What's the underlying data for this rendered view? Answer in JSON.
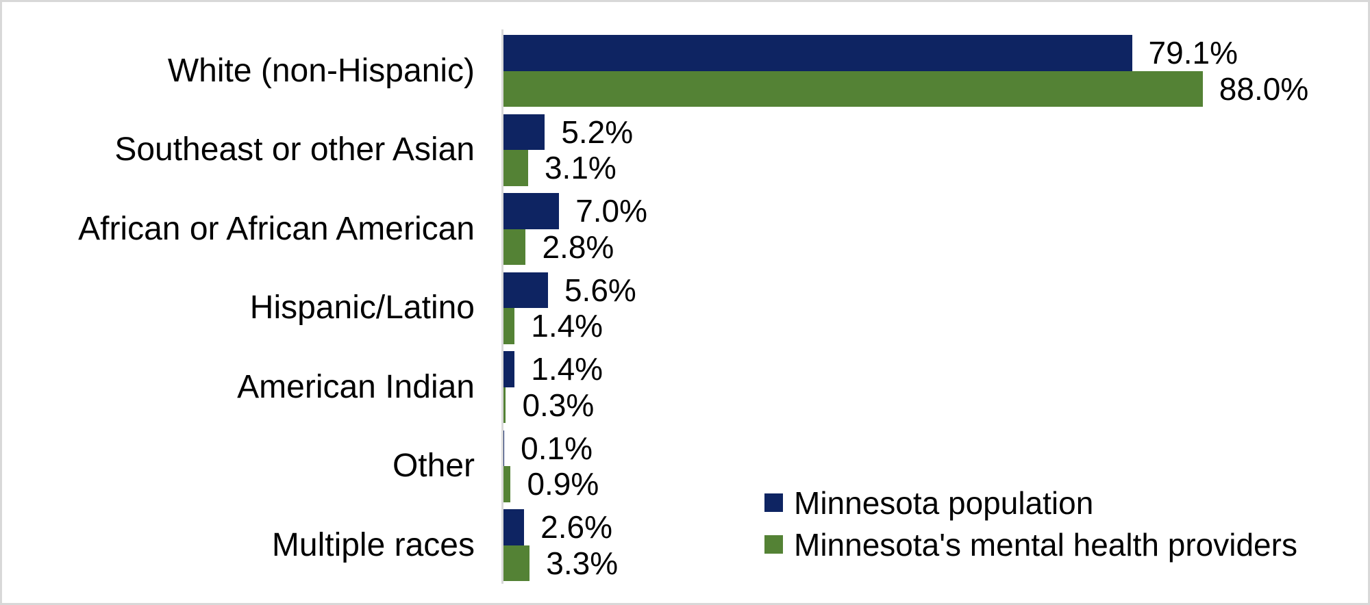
{
  "chart_data": {
    "type": "bar",
    "orientation": "horizontal",
    "title": "",
    "xlabel": "",
    "ylabel": "",
    "xlim": [
      0,
      100
    ],
    "grid": false,
    "legend_position": "bottom-right",
    "background_color": "#FFFFFF",
    "border_color": "#D8D8D8",
    "axis_line_color": "#D9D9D9",
    "text_color": "#000000",
    "categories": [
      "White (non-Hispanic)",
      "Southeast or other Asian",
      "African or African American",
      "Hispanic/Latino",
      "American Indian",
      "Other",
      "Multiple races"
    ],
    "series": [
      {
        "name": "Minnesota population",
        "color": "#0E2462",
        "values": [
          79.1,
          5.2,
          7.0,
          5.6,
          1.4,
          0.1,
          2.6
        ],
        "labels": [
          "79.1%",
          "5.2%",
          "7.0%",
          "5.6%",
          "1.4%",
          "0.1%",
          "2.6%"
        ]
      },
      {
        "name": "Minnesota's mental health providers",
        "color": "#548235",
        "values": [
          88.0,
          3.1,
          2.8,
          1.4,
          0.3,
          0.9,
          3.3
        ],
        "labels": [
          "88.0%",
          "3.1%",
          "2.8%",
          "1.4%",
          "0.3%",
          "0.9%",
          "3.3%"
        ]
      }
    ]
  }
}
